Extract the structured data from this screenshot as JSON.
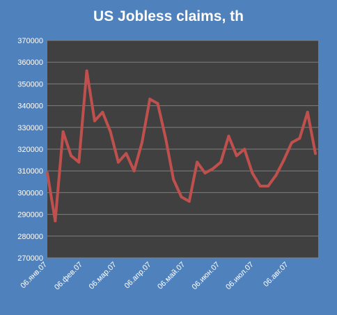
{
  "chart_data": {
    "type": "line",
    "title": "US Jobless claims, th",
    "xlabel": "",
    "ylabel": "",
    "ylim": [
      270000,
      370000
    ],
    "y_ticks": [
      270000,
      280000,
      290000,
      300000,
      310000,
      320000,
      330000,
      340000,
      350000,
      360000,
      370000
    ],
    "x_tick_labels": [
      "06.янв.07",
      "06.фев.07",
      "06.мар.07",
      "06.апр.07",
      "06.май.07",
      "06.июн.07",
      "06.июл.07",
      "06.авг.07"
    ],
    "grid": true,
    "legend": "none",
    "colors": {
      "background": "#4f81bd",
      "plot_area": "#404040",
      "gridline": "#7f7f7f",
      "line": "#c0504d",
      "text": "#ffffff"
    },
    "series": [
      {
        "values": [
          309000,
          287000,
          328000,
          317000,
          314000,
          356000,
          333000,
          337000,
          328000,
          314000,
          318000,
          310000,
          323000,
          343000,
          341000,
          325000,
          306000,
          298000,
          296000,
          314000,
          309000,
          311000,
          314000,
          326000,
          317000,
          320000,
          309000,
          303000,
          303000,
          308000,
          315000,
          323000,
          325000,
          337000,
          318000
        ]
      }
    ]
  }
}
